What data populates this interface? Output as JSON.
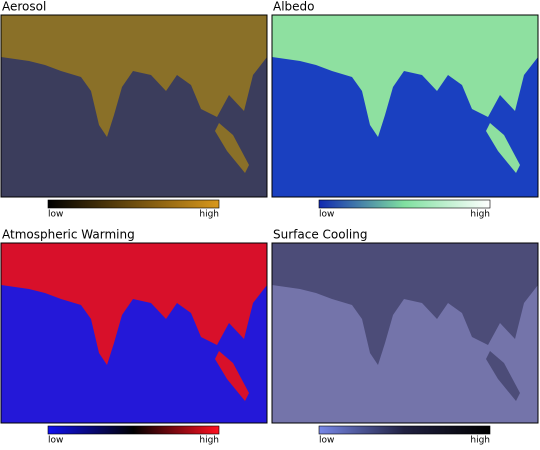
{
  "panels": [
    {
      "title": "Aerosol",
      "ocean_color": "#3b3d5c",
      "land_color": "#8a7028",
      "low": "low",
      "high": "high",
      "scale_colors": [
        "#000000",
        "#d8981c"
      ]
    },
    {
      "title": "Albedo",
      "ocean_color": "#1a40c0",
      "land_color": "#8ee0a0",
      "low": "low",
      "high": "high",
      "scale_colors": [
        "#1028b0",
        "#80e0a0",
        "#ffffff"
      ]
    },
    {
      "title": "Atmospheric Warming",
      "ocean_color": "#2418d8",
      "land_color": "#d8102a",
      "low": "low",
      "high": "high",
      "scale_colors": [
        "#1010f0",
        "#000000",
        "#ff1020"
      ]
    },
    {
      "title": "Surface Cooling",
      "ocean_color": "#7474aa",
      "land_color": "#4c4c78",
      "low": "low",
      "high": "high",
      "scale_colors": [
        "#7888e8",
        "#202040",
        "#000000"
      ]
    }
  ]
}
